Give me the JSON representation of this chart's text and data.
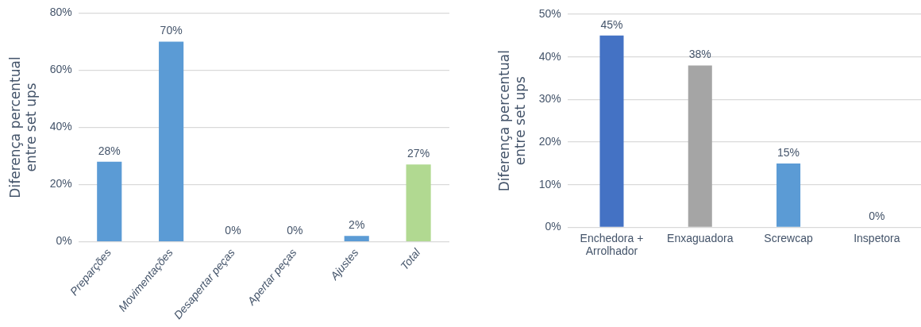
{
  "chart_data": [
    {
      "type": "bar",
      "ylabel": "Diferença percentual\nentre set ups",
      "categories": [
        "Preparções",
        "Movimentações",
        "Desapertar peças",
        "Apertar peças",
        "Ajustes",
        "Total"
      ],
      "values": [
        28,
        70,
        0,
        0,
        2,
        27
      ],
      "colors": [
        "#5b9bd5",
        "#5b9bd5",
        "#5b9bd5",
        "#5b9bd5",
        "#5b9bd5",
        "#b1d991"
      ],
      "value_labels": [
        "28%",
        "70%",
        "0%",
        "0%",
        "2%",
        "27%"
      ],
      "ylim": [
        0,
        80
      ],
      "yticks": [
        {
          "value": 0,
          "label": "0%"
        },
        {
          "value": 20,
          "label": "20%"
        },
        {
          "value": 40,
          "label": "40%"
        },
        {
          "value": 60,
          "label": "60%"
        },
        {
          "value": 80,
          "label": "80%"
        }
      ],
      "grid": "y",
      "legend": false
    },
    {
      "type": "bar",
      "ylabel": "Diferença percentual\nentre set ups",
      "categories": [
        "Enchedora +\nArrolhador",
        "Enxaguadora",
        "Screwcap",
        "Inspetora"
      ],
      "values": [
        45,
        38,
        15,
        0
      ],
      "colors": [
        "#4472c4",
        "#a5a5a5",
        "#5b9bd5",
        "#5b9bd5"
      ],
      "value_labels": [
        "45%",
        "38%",
        "15%",
        "0%"
      ],
      "ylim": [
        0,
        50
      ],
      "yticks": [
        {
          "value": 0,
          "label": "0%"
        },
        {
          "value": 10,
          "label": "10%"
        },
        {
          "value": 20,
          "label": "20%"
        },
        {
          "value": 30,
          "label": "30%"
        },
        {
          "value": 40,
          "label": "40%"
        },
        {
          "value": 50,
          "label": "50%"
        }
      ],
      "grid": "y",
      "legend": false
    }
  ]
}
